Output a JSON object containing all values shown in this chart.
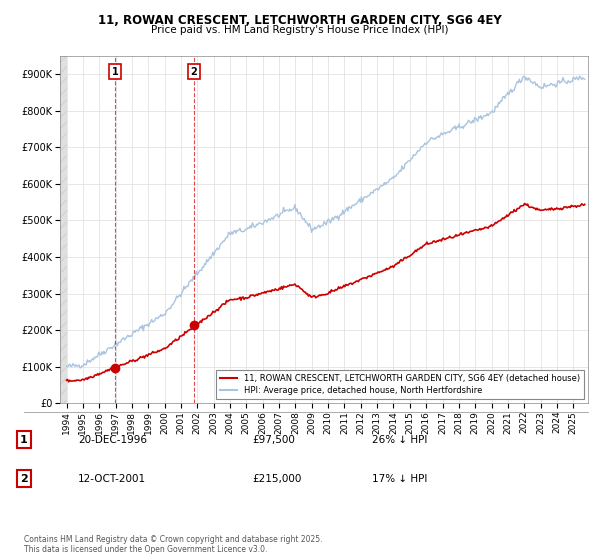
{
  "title": "11, ROWAN CRESCENT, LETCHWORTH GARDEN CITY, SG6 4EY",
  "subtitle": "Price paid vs. HM Land Registry's House Price Index (HPI)",
  "legend_line1": "11, ROWAN CRESCENT, LETCHWORTH GARDEN CITY, SG6 4EY (detached house)",
  "legend_line2": "HPI: Average price, detached house, North Hertfordshire",
  "transaction1_date": "20-DEC-1996",
  "transaction1_price": "£97,500",
  "transaction1_hpi": "26% ↓ HPI",
  "transaction2_date": "12-OCT-2001",
  "transaction2_price": "£215,000",
  "transaction2_hpi": "17% ↓ HPI",
  "copyright": "Contains HM Land Registry data © Crown copyright and database right 2025.\nThis data is licensed under the Open Government Licence v3.0.",
  "hpi_color": "#aac4e0",
  "price_color": "#cc0000",
  "transaction_color": "#cc0000",
  "ylim": [
    0,
    950000
  ],
  "yticks": [
    0,
    100000,
    200000,
    300000,
    400000,
    500000,
    600000,
    700000,
    800000,
    900000
  ],
  "xlim_start": 1993.6,
  "xlim_end": 2025.9,
  "transaction1_x": 1996.97,
  "transaction1_y": 97500,
  "transaction2_x": 2001.79,
  "transaction2_y": 215000
}
